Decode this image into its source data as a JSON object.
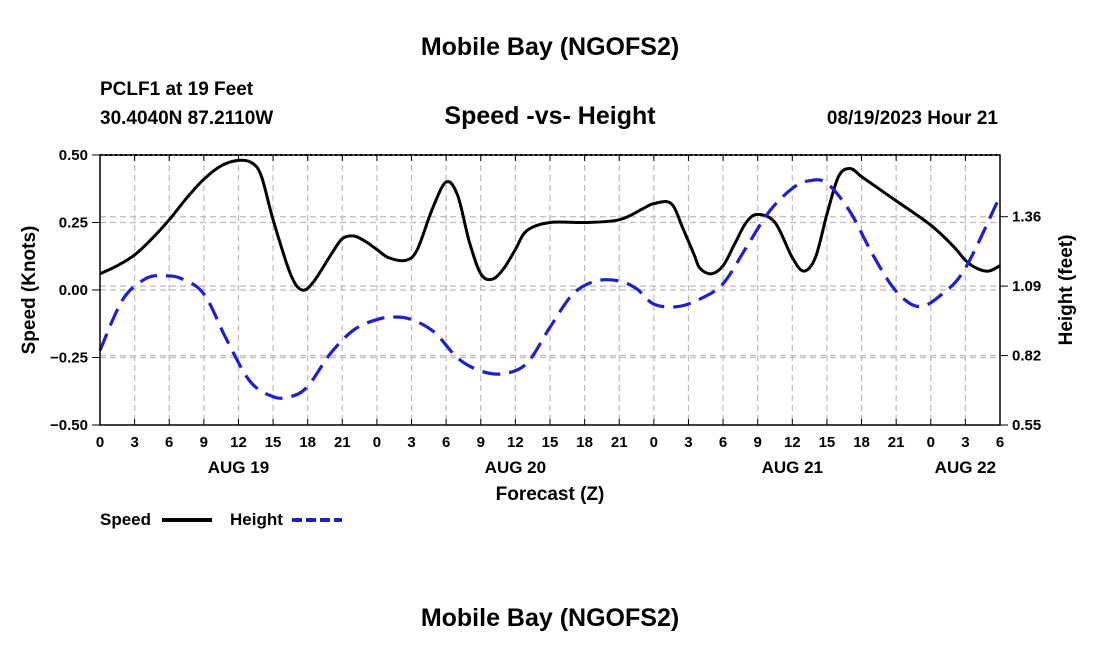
{
  "header": {
    "title": "Mobile Bay (NGOFS2)",
    "station": "PCLF1 at 19 Feet",
    "coords": "30.4040N  87.2110W",
    "subtitle": "Speed -vs- Height",
    "datetime": "08/19/2023 Hour 21"
  },
  "footer": {
    "title": "Mobile Bay (NGOFS2)"
  },
  "legend": {
    "speed_label": "Speed",
    "height_label": "Height"
  },
  "colors": {
    "speed": "#000000",
    "height": "#1f1fcc",
    "grid": "#bbbbbb"
  },
  "chart_data": {
    "type": "line",
    "title": "Speed -vs- Height",
    "xlabel": "Forecast (Z)",
    "ylabel_left": "Speed (Knots)",
    "ylabel_right": "Height (feet)",
    "x_unit": "hours from 00Z AUG 19",
    "x_range": [
      0,
      78
    ],
    "x_tick_labels": [
      "0",
      "3",
      "6",
      "9",
      "12",
      "15",
      "18",
      "21",
      "0",
      "3",
      "6",
      "9",
      "12",
      "15",
      "18",
      "21",
      "0",
      "3",
      "6",
      "9",
      "12",
      "15",
      "18",
      "21",
      "0",
      "3",
      "6"
    ],
    "date_labels": [
      {
        "x": 12,
        "label": "AUG 19"
      },
      {
        "x": 36,
        "label": "AUG 20"
      },
      {
        "x": 60,
        "label": "AUG 21"
      },
      {
        "x": 75,
        "label": "AUG 22"
      }
    ],
    "ylim_left": [
      -0.5,
      0.5
    ],
    "left_ticks": [
      0.5,
      0.25,
      0.0,
      -0.25,
      -0.5
    ],
    "left_tick_labels": [
      "0.50",
      "0.25",
      "0.00",
      "−0.25",
      "−0.50"
    ],
    "ylim_right": [
      0.55,
      1.6
    ],
    "right_ticks": [
      1.36,
      1.09,
      0.82,
      0.55
    ],
    "right_tick_labels": [
      "1.36",
      "1.09",
      "0.82",
      "0.55"
    ],
    "grid": true,
    "series": [
      {
        "name": "Speed",
        "axis": "left",
        "style": "solid",
        "x": [
          0,
          1.5,
          3,
          4.5,
          6,
          7.5,
          9,
          10.5,
          12,
          13.2,
          14,
          15,
          16.5,
          17.5,
          18.5,
          20,
          21,
          22,
          23,
          24,
          25,
          26.5,
          27.5,
          28.8,
          30,
          31,
          32,
          33,
          34,
          35,
          36,
          37,
          39,
          42,
          45,
          47,
          48,
          49.5,
          50.5,
          51.5,
          52,
          53,
          54,
          55,
          56,
          57,
          58.5,
          60,
          61,
          62,
          63,
          64,
          65,
          66,
          67,
          69,
          72,
          74,
          75,
          76,
          77,
          78
        ],
        "y": [
          0.06,
          0.09,
          0.13,
          0.19,
          0.26,
          0.34,
          0.41,
          0.46,
          0.48,
          0.47,
          0.42,
          0.26,
          0.06,
          0.0,
          0.03,
          0.13,
          0.19,
          0.2,
          0.18,
          0.15,
          0.12,
          0.11,
          0.15,
          0.3,
          0.4,
          0.35,
          0.18,
          0.06,
          0.04,
          0.08,
          0.15,
          0.22,
          0.25,
          0.25,
          0.26,
          0.3,
          0.32,
          0.32,
          0.23,
          0.13,
          0.08,
          0.06,
          0.09,
          0.17,
          0.25,
          0.28,
          0.25,
          0.12,
          0.07,
          0.12,
          0.28,
          0.42,
          0.45,
          0.42,
          0.39,
          0.33,
          0.24,
          0.16,
          0.11,
          0.08,
          0.07,
          0.09
        ]
      },
      {
        "name": "Height",
        "axis": "right",
        "style": "dashed",
        "x": [
          0,
          2,
          4,
          5.5,
          7,
          9,
          11,
          13,
          15,
          16.5,
          18,
          20,
          22,
          24,
          25.5,
          27,
          29,
          31,
          33,
          35,
          37,
          39,
          41,
          43,
          45,
          46.5,
          48,
          50,
          52,
          54,
          56,
          58,
          60,
          61.5,
          63,
          65,
          67,
          69,
          71,
          73,
          75,
          78
        ],
        "y": [
          0.84,
          1.04,
          1.12,
          1.13,
          1.12,
          1.06,
          0.88,
          0.72,
          0.66,
          0.66,
          0.7,
          0.83,
          0.92,
          0.96,
          0.97,
          0.96,
          0.91,
          0.81,
          0.76,
          0.75,
          0.79,
          0.93,
          1.06,
          1.11,
          1.11,
          1.08,
          1.02,
          1.01,
          1.04,
          1.1,
          1.24,
          1.38,
          1.47,
          1.5,
          1.49,
          1.38,
          1.21,
          1.07,
          1.01,
          1.06,
          1.16,
          1.44
        ]
      }
    ]
  }
}
